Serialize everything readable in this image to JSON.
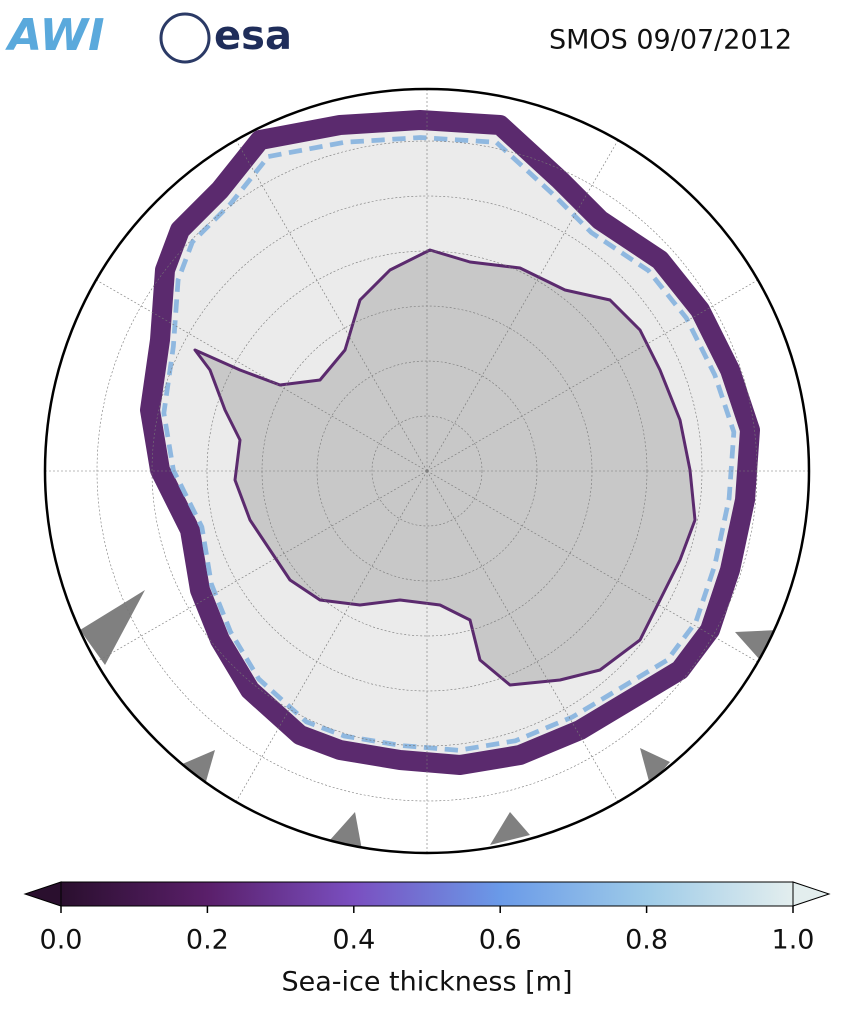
{
  "header": {
    "logos": [
      "AWI",
      "esa"
    ],
    "title": "SMOS 09/07/2012"
  },
  "chart_data": {
    "type": "map",
    "colorbar": {
      "label": "Sea-ice thickness [m]",
      "lim": [
        0,
        1
      ],
      "ticks": [
        {
          "value": 0,
          "label": "0.0"
        },
        {
          "value": 0.2,
          "label": "0.2"
        },
        {
          "value": 0.4,
          "label": "0.4"
        },
        {
          "value": 0.6,
          "label": "0.6"
        },
        {
          "value": 0.8,
          "label": "0.8"
        },
        {
          "value": 1,
          "label": "1.0"
        }
      ],
      "colors": [
        "#2a0f2e",
        "#5a1f6a",
        "#7a4fc0",
        "#6a9ae8",
        "#9ecbe8",
        "#e3eeee"
      ]
    }
  }
}
